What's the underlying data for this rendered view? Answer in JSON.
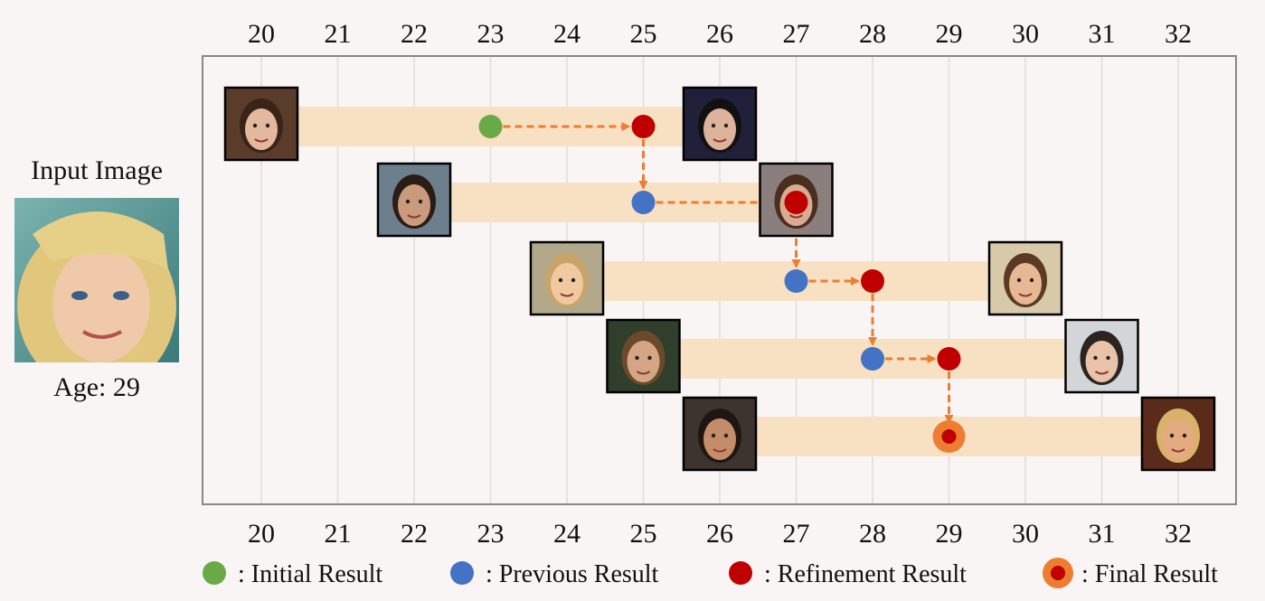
{
  "input": {
    "title": "Input Image",
    "age_label": "Age: 29",
    "photo_icon": "face-photo-blonde-woman"
  },
  "axis": {
    "ticks": [
      "20",
      "21",
      "22",
      "23",
      "24",
      "25",
      "26",
      "27",
      "28",
      "29",
      "30",
      "31",
      "32"
    ],
    "range": [
      19.5,
      32.5
    ],
    "grid": true
  },
  "rows": [
    {
      "range": [
        20,
        26
      ],
      "left_photo": "face-photo-1-left",
      "right_photo": "face-photo-1-right",
      "points": [
        {
          "age": 23,
          "kind": "initial"
        },
        {
          "age": 25,
          "kind": "refinement"
        }
      ]
    },
    {
      "range": [
        22,
        27
      ],
      "left_photo": "face-photo-2-left",
      "right_photo": "face-photo-2-right",
      "points": [
        {
          "age": 25,
          "kind": "previous"
        },
        {
          "age": 27,
          "kind": "refinement"
        }
      ]
    },
    {
      "range": [
        24,
        30
      ],
      "left_photo": "face-photo-3-left",
      "right_photo": "face-photo-3-right",
      "points": [
        {
          "age": 27,
          "kind": "previous"
        },
        {
          "age": 28,
          "kind": "refinement"
        }
      ]
    },
    {
      "range": [
        25,
        31
      ],
      "left_photo": "face-photo-4-left",
      "right_photo": "face-photo-4-right",
      "points": [
        {
          "age": 28,
          "kind": "previous"
        },
        {
          "age": 29,
          "kind": "refinement"
        }
      ]
    },
    {
      "range": [
        26,
        32
      ],
      "left_photo": "face-photo-5-left",
      "right_photo": "face-photo-5-right",
      "points": [
        {
          "age": 29,
          "kind": "final"
        }
      ]
    }
  ],
  "legend": [
    {
      "kind": "initial",
      "label": ": Initial Result"
    },
    {
      "kind": "previous",
      "label": ": Previous Result"
    },
    {
      "kind": "refinement",
      "label": ": Refinement Result"
    },
    {
      "kind": "final",
      "label": ": Final Result"
    }
  ],
  "colors": {
    "initial": "#6aaa46",
    "previous": "#4472c4",
    "refinement": "#c00000",
    "final_ring": "#ed7d31",
    "arrow": "#ed7d31",
    "band": "#f7e1c2",
    "grid": "#dddddd",
    "frame": "#888888"
  }
}
